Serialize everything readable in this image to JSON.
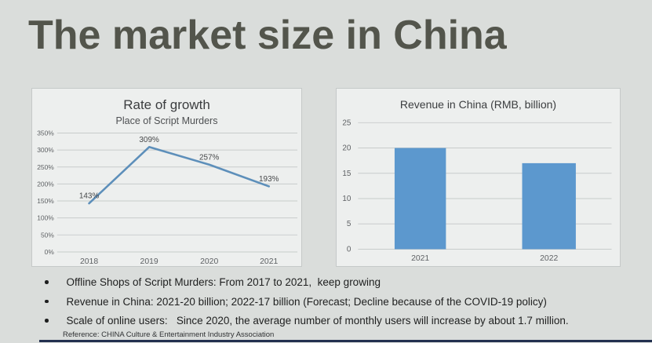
{
  "slide": {
    "title": "The market size in China"
  },
  "colors": {
    "background": "#dadddb",
    "panel_background": "#edefee",
    "panel_border": "#c5c9c8",
    "title_text": "#53554c",
    "line_blue": "#5d8fba",
    "bar_blue": "#5c98ce",
    "bottom_rule_navy": "#22304f"
  },
  "chart_data": [
    {
      "type": "line",
      "title": "Rate of growth",
      "subtitle": "Place of Script Murders",
      "x": [
        "2018",
        "2019",
        "2020",
        "2021"
      ],
      "series": [
        {
          "name": "Place of Script Murders",
          "values": [
            143,
            309,
            257,
            193
          ]
        }
      ],
      "point_labels": [
        "143%",
        "309%",
        "257%",
        "193%"
      ],
      "ylim": [
        0,
        350
      ],
      "ytick_values": [
        0,
        50,
        100,
        150,
        200,
        250,
        300,
        350
      ],
      "ytick_labels": [
        "0%",
        "50%",
        "100%",
        "150%",
        "200%",
        "250%",
        "300%",
        "350%"
      ],
      "xlabel": "",
      "ylabel": "",
      "grid": true,
      "legend": "none",
      "line_color": "#5d8fba"
    },
    {
      "type": "bar",
      "title": "Revenue in China (RMB, billion)",
      "categories": [
        "2021",
        "2022"
      ],
      "values": [
        20,
        17
      ],
      "ylim": [
        0,
        25
      ],
      "ytick_values": [
        0,
        5,
        10,
        15,
        20,
        25
      ],
      "ytick_labels": [
        "0",
        "5",
        "10",
        "15",
        "20",
        "25"
      ],
      "xlabel": "",
      "ylabel": "",
      "grid": true,
      "legend": "none",
      "bar_color": "#5c98ce"
    }
  ],
  "content": {
    "bullets": [
      "Offline Shops of Script Murders: From 2017 to 2021,  keep growing",
      "Revenue in China: 2021-20 billion; 2022-17 billion (Forecast; Decline because of the COVID-19 policy)",
      "Scale of online users:   Since 2020, the average number of monthly users will increase by about 1.7 million."
    ],
    "reference": "Reference: CHINA Culture & Entertainment Industry Association"
  }
}
